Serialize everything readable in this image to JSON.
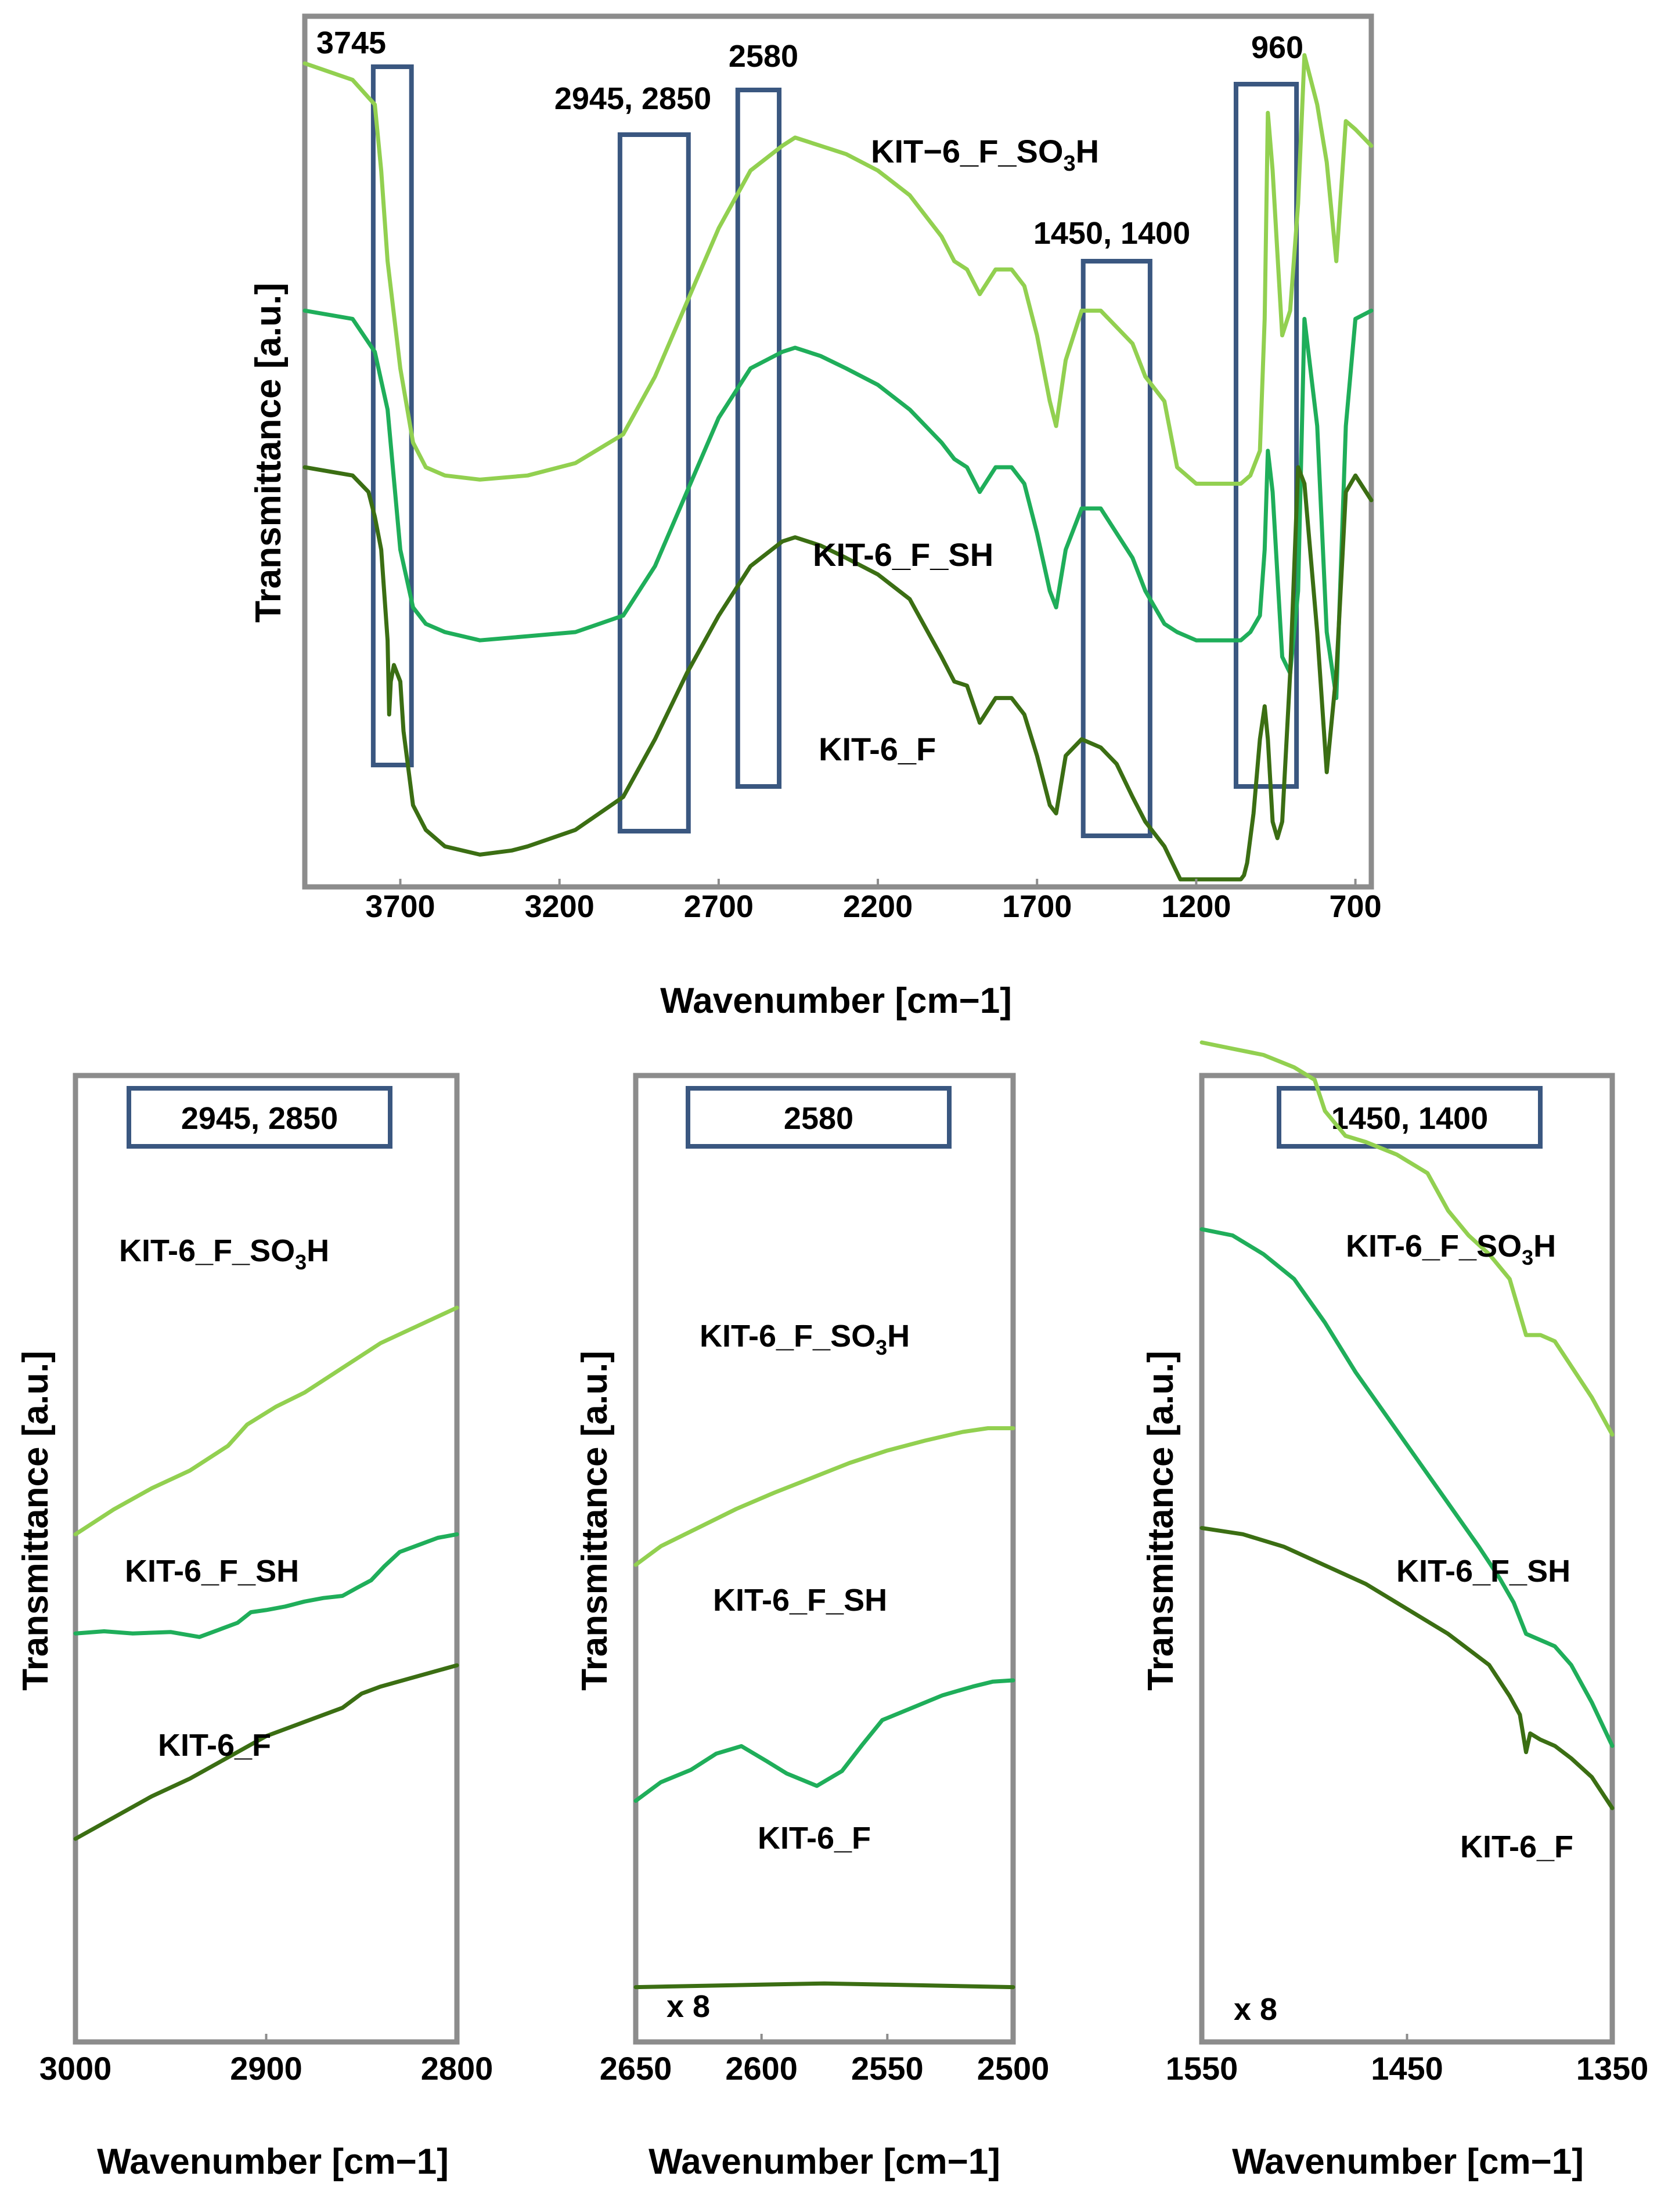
{
  "colors": {
    "so3h": "#92d050",
    "sh": "#1fae5a",
    "f": "#3b6e13",
    "frame": "#8c8c8c",
    "box": "#3a5780"
  },
  "chart_data": [
    {
      "type": "line",
      "title": "",
      "xlabel": "Wavenumber [cm−1]",
      "ylabel": "Transmittance [a.u.]",
      "xlim": [
        4000,
        650
      ],
      "ylim": [
        0,
        100
      ],
      "x_reversed": true,
      "xticks": [
        3700,
        3200,
        2700,
        2200,
        1700,
        1200,
        700
      ],
      "xtick_labels": [
        "3700",
        "3200",
        "2700",
        "2200",
        "1700",
        "1200",
        "700"
      ],
      "highlight_bands": [
        {
          "label": "3745",
          "from": 3785,
          "to": 3665
        },
        {
          "label": "2945, 2850",
          "from": 3010,
          "to": 2795
        },
        {
          "label": "2580",
          "from": 2640,
          "to": 2510
        },
        {
          "label": "1450, 1400",
          "from": 1555,
          "to": 1345
        },
        {
          "label": "960",
          "from": 1075,
          "to": 885
        }
      ],
      "band_label_2945": "2945, 2850",
      "series": [
        {
          "name": "KIT−6_F_SO3H",
          "label_base": "KIT−6_F_SO",
          "label_sub": "3",
          "label_end": "H",
          "color_key": "so3h",
          "x": [
            4000,
            3850,
            3780,
            3760,
            3740,
            3700,
            3660,
            3620,
            3560,
            3450,
            3300,
            3150,
            3000,
            2900,
            2800,
            2700,
            2600,
            2500,
            2460,
            2380,
            2300,
            2200,
            2100,
            2000,
            1960,
            1920,
            1880,
            1830,
            1780,
            1740,
            1700,
            1660,
            1640,
            1610,
            1560,
            1500,
            1450,
            1400,
            1360,
            1300,
            1260,
            1200,
            1120,
            1060,
            1030,
            1000,
            985,
            975,
            960,
            945,
            930,
            905,
            880,
            860,
            820,
            790,
            760,
            730,
            700,
            650
          ],
          "y": [
            99,
            97,
            94,
            86,
            75,
            62,
            53,
            50,
            49,
            48.5,
            49,
            50.5,
            54,
            61,
            70,
            79,
            86,
            89,
            90,
            89,
            88,
            86,
            83,
            78,
            75,
            74,
            71,
            74,
            74,
            72,
            66,
            58,
            55,
            63,
            69,
            69,
            67,
            65,
            61,
            58,
            50,
            48,
            48,
            48,
            49,
            52,
            68,
            93,
            86,
            76,
            66,
            69,
            82,
            100,
            94,
            87,
            75,
            92,
            91,
            89
          ]
        },
        {
          "name": "KIT-6_F_SH",
          "color_key": "sh",
          "x": [
            4000,
            3850,
            3780,
            3740,
            3700,
            3660,
            3620,
            3560,
            3450,
            3300,
            3150,
            3000,
            2900,
            2800,
            2700,
            2600,
            2500,
            2460,
            2380,
            2300,
            2200,
            2100,
            2000,
            1960,
            1920,
            1880,
            1830,
            1780,
            1740,
            1700,
            1660,
            1640,
            1610,
            1560,
            1500,
            1450,
            1400,
            1360,
            1300,
            1260,
            1200,
            1120,
            1060,
            1030,
            1000,
            985,
            975,
            960,
            945,
            930,
            905,
            880,
            860,
            820,
            790,
            760,
            730,
            700,
            650
          ],
          "y": [
            69,
            68,
            64,
            57,
            40,
            33,
            31,
            30,
            29,
            29.5,
            30,
            32,
            38,
            47,
            56,
            62,
            64,
            64.5,
            63.5,
            62,
            60,
            57,
            53,
            51,
            50,
            47,
            50,
            50,
            48,
            42,
            35,
            33,
            40,
            45,
            45,
            42,
            39,
            35,
            31,
            30,
            29,
            29,
            29,
            30,
            32,
            40,
            52,
            47,
            37,
            27,
            25,
            35,
            68,
            55,
            30,
            22,
            55,
            68,
            69
          ]
        },
        {
          "name": "KIT-6_F",
          "color_key": "f",
          "x": [
            4000,
            3850,
            3800,
            3780,
            3760,
            3740,
            3735,
            3730,
            3720,
            3700,
            3690,
            3660,
            3620,
            3560,
            3450,
            3350,
            3300,
            3150,
            3000,
            2900,
            2800,
            2700,
            2600,
            2500,
            2460,
            2380,
            2300,
            2200,
            2100,
            2000,
            1960,
            1920,
            1880,
            1830,
            1780,
            1740,
            1700,
            1660,
            1640,
            1610,
            1560,
            1500,
            1450,
            1400,
            1360,
            1300,
            1250,
            1200,
            1120,
            1060,
            1050,
            1040,
            1020,
            1000,
            985,
            975,
            960,
            945,
            930,
            905,
            880,
            860,
            820,
            790,
            760,
            730,
            700,
            650
          ],
          "y": [
            50,
            49,
            47,
            44,
            40,
            29,
            20,
            24,
            26,
            24,
            18,
            9,
            6,
            4,
            3,
            3.5,
            4,
            6,
            10,
            17,
            25,
            32,
            38,
            41,
            41.5,
            40.5,
            39,
            37,
            34,
            27,
            24,
            23.5,
            19,
            22,
            22,
            20,
            15,
            9,
            8,
            15,
            17,
            16,
            14,
            10,
            7,
            4,
            0,
            0,
            0,
            0,
            0.5,
            2,
            8,
            17,
            21,
            17,
            7,
            5,
            7,
            25,
            50,
            48,
            30,
            13,
            25,
            47,
            49,
            46
          ]
        }
      ]
    },
    {
      "type": "line",
      "title": "2945, 2850",
      "xlabel": "Wavenumber [cm−1]",
      "ylabel": "Transmittance [a.u.]",
      "xlim": [
        3000,
        2800
      ],
      "ylim": [
        0,
        100
      ],
      "x_reversed": true,
      "xticks": [
        3000,
        2900,
        2800
      ],
      "xtick_labels": [
        "3000",
        "2900",
        "2800"
      ],
      "series": [
        {
          "name": "KIT-6_F_SO3H",
          "label_base": "KIT-6_F_SO",
          "label_sub": "3",
          "label_end": "H",
          "color_key": "so3h",
          "x": [
            3000,
            2980,
            2960,
            2940,
            2920,
            2910,
            2895,
            2880,
            2860,
            2840,
            2820,
            2800
          ],
          "y": [
            53,
            56.5,
            59.5,
            62,
            65.5,
            68.5,
            71,
            73,
            76.5,
            80,
            82.5,
            85
          ]
        },
        {
          "name": "KIT-6_F_SH",
          "color_key": "sh",
          "x": [
            3000,
            2985,
            2970,
            2950,
            2935,
            2925,
            2915,
            2908,
            2900,
            2890,
            2880,
            2870,
            2860,
            2852,
            2845,
            2838,
            2830,
            2820,
            2810,
            2800
          ],
          "y": [
            39,
            39.3,
            39,
            39.2,
            38.5,
            39.5,
            40.5,
            42,
            42.3,
            42.8,
            43.5,
            44,
            44.3,
            45.5,
            46.5,
            48.5,
            50.5,
            51.5,
            52.5,
            53
          ]
        },
        {
          "name": "KIT-6_F",
          "color_key": "f",
          "x": [
            3000,
            2980,
            2960,
            2940,
            2920,
            2900,
            2880,
            2860,
            2850,
            2840,
            2820,
            2800
          ],
          "y": [
            10,
            13,
            16,
            18.5,
            21.5,
            24.5,
            26.5,
            28.5,
            30.5,
            31.5,
            33,
            34.5
          ]
        }
      ]
    },
    {
      "type": "line",
      "title": "2580",
      "xlabel": "Wavenumber [cm−1]",
      "ylabel": "Transmittance [a.u.]",
      "xlim": [
        2650,
        2500
      ],
      "ylim": [
        0,
        100
      ],
      "x_reversed": true,
      "scale_note": "x 8",
      "xticks": [
        2650,
        2600,
        2550,
        2500
      ],
      "xtick_labels": [
        "2650",
        "2600",
        "2550",
        "2500"
      ],
      "series": [
        {
          "name": "KIT-6_F_SO3H",
          "label_base": "KIT-6_F_SO",
          "label_sub": "3",
          "label_end": "H",
          "color_key": "so3h",
          "x": [
            2650,
            2640,
            2625,
            2610,
            2595,
            2580,
            2565,
            2550,
            2535,
            2520,
            2510,
            2500
          ],
          "y": [
            60,
            61.5,
            63,
            64.5,
            65.8,
            67,
            68.2,
            69.2,
            70,
            70.7,
            71,
            71
          ]
        },
        {
          "name": "KIT-6_F_SH",
          "color_key": "sh",
          "x": [
            2650,
            2640,
            2628,
            2618,
            2608,
            2598,
            2590,
            2578,
            2568,
            2560,
            2552,
            2540,
            2528,
            2516,
            2508,
            2500
          ],
          "y": [
            41,
            42.5,
            43.5,
            44.8,
            45.4,
            44.2,
            43.2,
            42.2,
            43.4,
            45.5,
            47.5,
            48.5,
            49.5,
            50.2,
            50.6,
            50.7
          ]
        },
        {
          "name": "KIT-6_F",
          "color_key": "f",
          "x": [
            2650,
            2600,
            2575,
            2550,
            2500
          ],
          "y": [
            26,
            26.2,
            26.3,
            26.2,
            26
          ]
        }
      ]
    },
    {
      "type": "line",
      "title": "1450, 1400",
      "xlabel": "Wavenumber [cm−1]",
      "ylabel": "Transmittance [a.u.]",
      "xlim": [
        1550,
        1350
      ],
      "ylim": [
        0,
        100
      ],
      "x_reversed": true,
      "scale_note": "x 8",
      "xticks": [
        1550,
        1450,
        1350
      ],
      "xtick_labels": [
        "1550",
        "1450",
        "1350"
      ],
      "series": [
        {
          "name": "KIT-6_F_SO3H",
          "label_base": "KIT-6_F_SO",
          "label_sub": "3",
          "label_end": "H",
          "color_key": "so3h",
          "x": [
            1550,
            1535,
            1520,
            1505,
            1495,
            1490,
            1480,
            1470,
            1455,
            1440,
            1430,
            1420,
            1410,
            1400,
            1392,
            1385,
            1378,
            1370,
            1360,
            1350
          ],
          "y": [
            85.5,
            85,
            84.5,
            83.5,
            82.5,
            80,
            78,
            77.5,
            76.5,
            75,
            72,
            70,
            68.5,
            66.5,
            62,
            62,
            61.5,
            59.5,
            57,
            54
          ]
        },
        {
          "name": "KIT-6_F_SH",
          "color_key": "sh",
          "x": [
            1550,
            1535,
            1520,
            1505,
            1490,
            1475,
            1460,
            1445,
            1430,
            1415,
            1405,
            1398,
            1392,
            1385,
            1378,
            1370,
            1360,
            1350
          ],
          "y": [
            70.5,
            70,
            68.5,
            66.5,
            63,
            59,
            55.5,
            52,
            48.5,
            45,
            42.5,
            40.5,
            38,
            37.5,
            37,
            35.5,
            32.5,
            29
          ]
        },
        {
          "name": "KIT-6_F",
          "color_key": "f",
          "x": [
            1550,
            1530,
            1510,
            1490,
            1470,
            1450,
            1430,
            1410,
            1400,
            1395,
            1392,
            1390,
            1385,
            1378,
            1370,
            1360,
            1350
          ],
          "y": [
            46.5,
            46,
            45,
            43.5,
            42,
            40,
            38,
            35.5,
            33,
            31.5,
            28.5,
            30,
            29.5,
            29,
            28,
            26.5,
            24
          ]
        }
      ]
    }
  ]
}
